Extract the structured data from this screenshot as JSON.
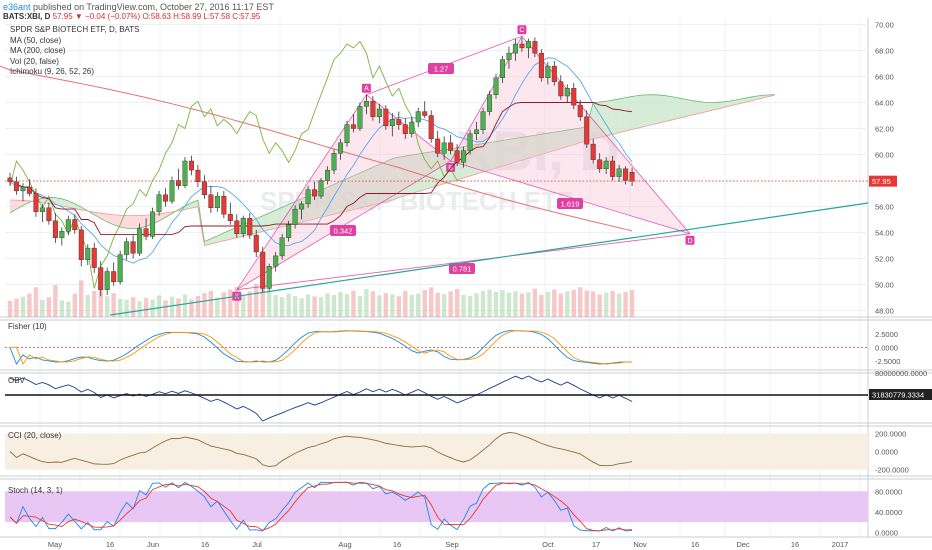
{
  "header": {
    "publisher": "e36ant",
    "published_text": "published on TradingView.com, October 27, 2016 11:17 EST",
    "symbol_line": "BATS:XBI, D",
    "last": "57.95",
    "change": "−0.04 (−0.07%)",
    "ohlc": "O:58.63 H:58.99 L:57.58 C:57.95"
  },
  "legend": {
    "title": "SPDR S&P BIOTECH ETF, D, BATS",
    "items": [
      "MA (50, close)",
      "MA (200, close)",
      "Vol (20, false)",
      "Ichimoku (9, 26, 52, 26)"
    ]
  },
  "watermark": {
    "symbol": "XBI, D",
    "name": "SPDR S&P BIOTECH ETF"
  },
  "colors": {
    "bull": "#4caf50",
    "bear": "#e53935",
    "harmonic": "#e040a0",
    "trendline": "#26a69a",
    "ma50": "#5aa9e6",
    "ma200": "#e57373",
    "lagging": "#7cb342",
    "cloud_green": "#c8e6c9",
    "cloud_red": "#ffcdd2",
    "stoch_band": "#e9c7f5",
    "cci_band": "#f6efe2"
  },
  "chart_data": [
    {
      "type": "candlestick",
      "title": "SPDR S&P BIOTECH ETF, D, BATS",
      "y_ticks": [
        "70.00",
        "68.00",
        "66.00",
        "64.00",
        "62.00",
        "60.00",
        "58.00",
        "56.00",
        "54.00",
        "52.00",
        "50.00",
        "48.00"
      ],
      "ylim": [
        47.5,
        70.5
      ],
      "last_price_label": "57.95",
      "candles": [
        [
          58.2,
          58.6,
          57.6,
          57.9
        ],
        [
          57.9,
          58.3,
          56.9,
          57.2
        ],
        [
          57.2,
          57.8,
          56.4,
          57.5
        ],
        [
          57.5,
          58.1,
          56.8,
          57.0
        ],
        [
          57.0,
          57.4,
          55.2,
          55.6
        ],
        [
          55.6,
          56.2,
          54.8,
          55.9
        ],
        [
          55.9,
          56.3,
          54.6,
          54.9
        ],
        [
          54.9,
          55.5,
          53.2,
          53.6
        ],
        [
          53.6,
          54.4,
          53.0,
          54.1
        ],
        [
          54.1,
          55.3,
          53.8,
          55.0
        ],
        [
          55.0,
          55.4,
          53.9,
          54.2
        ],
        [
          54.2,
          54.5,
          51.4,
          51.9
        ],
        [
          51.9,
          53.1,
          51.5,
          52.8
        ],
        [
          52.8,
          53.2,
          50.9,
          51.3
        ],
        [
          51.3,
          51.8,
          49.1,
          49.6
        ],
        [
          49.6,
          51.3,
          49.2,
          51.0
        ],
        [
          51.0,
          51.7,
          49.9,
          50.2
        ],
        [
          50.2,
          52.6,
          50.0,
          52.3
        ],
        [
          52.3,
          53.6,
          51.9,
          53.3
        ],
        [
          53.3,
          53.8,
          52.0,
          52.4
        ],
        [
          52.4,
          54.7,
          52.2,
          54.3
        ],
        [
          54.3,
          55.1,
          53.4,
          53.7
        ],
        [
          53.7,
          55.9,
          53.5,
          55.6
        ],
        [
          55.6,
          57.2,
          55.3,
          56.9
        ],
        [
          56.9,
          57.4,
          56.0,
          56.4
        ],
        [
          56.4,
          58.3,
          56.2,
          58.0
        ],
        [
          58.0,
          58.9,
          57.3,
          57.6
        ],
        [
          57.6,
          59.8,
          57.4,
          59.5
        ],
        [
          59.5,
          59.9,
          58.4,
          58.8
        ],
        [
          58.8,
          59.2,
          57.5,
          57.9
        ],
        [
          57.9,
          58.4,
          56.6,
          56.9
        ],
        [
          56.9,
          57.6,
          55.5,
          55.9
        ],
        [
          55.9,
          57.1,
          55.6,
          56.8
        ],
        [
          56.8,
          57.2,
          55.1,
          55.4
        ],
        [
          55.4,
          56.3,
          54.6,
          54.9
        ],
        [
          54.9,
          55.4,
          53.6,
          53.9
        ],
        [
          53.9,
          55.3,
          53.6,
          55.1
        ],
        [
          55.1,
          55.5,
          53.5,
          53.8
        ],
        [
          53.8,
          54.2,
          52.1,
          52.5
        ],
        [
          52.5,
          52.9,
          49.4,
          49.7
        ],
        [
          49.7,
          51.6,
          49.5,
          51.4
        ],
        [
          51.4,
          52.5,
          51.0,
          52.2
        ],
        [
          52.2,
          53.9,
          51.9,
          53.6
        ],
        [
          53.6,
          54.9,
          53.3,
          54.6
        ],
        [
          54.6,
          56.1,
          54.3,
          55.8
        ],
        [
          55.8,
          56.4,
          55.0,
          56.2
        ],
        [
          56.2,
          57.6,
          55.9,
          57.3
        ],
        [
          57.3,
          57.9,
          56.5,
          56.8
        ],
        [
          56.8,
          58.2,
          56.6,
          58.0
        ],
        [
          58.0,
          59.1,
          57.7,
          58.8
        ],
        [
          58.8,
          60.4,
          58.5,
          60.1
        ],
        [
          60.1,
          61.2,
          59.6,
          60.9
        ],
        [
          60.9,
          62.6,
          60.6,
          62.3
        ],
        [
          62.3,
          63.1,
          61.7,
          62.0
        ],
        [
          62.0,
          64.0,
          61.8,
          63.7
        ],
        [
          63.7,
          64.6,
          63.1,
          64.1
        ],
        [
          64.1,
          64.5,
          62.6,
          62.9
        ],
        [
          62.9,
          63.9,
          62.4,
          63.5
        ],
        [
          63.5,
          63.8,
          61.9,
          62.2
        ],
        [
          62.2,
          63.2,
          61.4,
          62.7
        ],
        [
          62.7,
          63.3,
          61.9,
          62.3
        ],
        [
          62.3,
          62.8,
          61.2,
          61.6
        ],
        [
          61.6,
          62.9,
          61.3,
          62.5
        ],
        [
          62.5,
          63.6,
          62.1,
          63.3
        ],
        [
          63.3,
          64.1,
          62.8,
          63.0
        ],
        [
          63.0,
          63.4,
          60.9,
          61.2
        ],
        [
          61.2,
          61.8,
          59.8,
          60.1
        ],
        [
          60.1,
          61.4,
          59.6,
          60.9
        ],
        [
          60.9,
          61.5,
          60.0,
          60.3
        ],
        [
          60.3,
          60.8,
          59.1,
          59.4
        ],
        [
          59.4,
          60.6,
          59.0,
          60.3
        ],
        [
          60.3,
          61.9,
          60.0,
          61.6
        ],
        [
          61.6,
          62.5,
          61.1,
          61.9
        ],
        [
          61.9,
          63.6,
          61.6,
          63.3
        ],
        [
          63.3,
          64.9,
          63.0,
          64.6
        ],
        [
          64.6,
          66.2,
          64.3,
          65.9
        ],
        [
          65.9,
          67.6,
          65.5,
          67.3
        ],
        [
          67.3,
          68.3,
          66.6,
          67.8
        ],
        [
          67.8,
          68.9,
          67.2,
          68.5
        ],
        [
          68.5,
          69.0,
          67.9,
          68.2
        ],
        [
          68.2,
          68.9,
          67.4,
          68.7
        ],
        [
          68.7,
          69.0,
          67.5,
          67.8
        ],
        [
          67.8,
          68.1,
          65.6,
          65.9
        ],
        [
          65.9,
          67.1,
          65.4,
          66.8
        ],
        [
          66.8,
          67.2,
          65.3,
          65.6
        ],
        [
          65.6,
          66.1,
          64.2,
          64.5
        ],
        [
          64.5,
          65.4,
          64.0,
          65.1
        ],
        [
          65.1,
          65.5,
          63.5,
          63.8
        ],
        [
          63.8,
          64.2,
          62.6,
          62.9
        ],
        [
          62.9,
          63.4,
          60.5,
          60.8
        ],
        [
          60.8,
          61.2,
          59.3,
          59.6
        ],
        [
          59.6,
          60.1,
          58.6,
          58.9
        ],
        [
          58.9,
          59.8,
          58.5,
          59.5
        ],
        [
          59.5,
          59.9,
          58.0,
          58.3
        ],
        [
          58.3,
          59.2,
          57.9,
          58.9
        ],
        [
          58.9,
          59.1,
          57.7,
          58.0
        ],
        [
          58.63,
          58.99,
          57.58,
          57.95
        ]
      ],
      "volume": [
        36,
        41,
        45,
        52,
        66,
        38,
        44,
        71,
        37,
        34,
        52,
        81,
        49,
        58,
        92,
        46,
        53,
        40,
        38,
        44,
        35,
        42,
        39,
        48,
        37,
        45,
        41,
        50,
        39,
        47,
        53,
        58,
        43,
        55,
        61,
        67,
        48,
        57,
        74,
        139,
        56,
        49,
        44,
        52,
        47,
        42,
        50,
        46,
        44,
        53,
        49,
        55,
        51,
        58,
        47,
        62,
        57,
        48,
        53,
        50,
        46,
        58,
        49,
        52,
        60,
        66,
        54,
        51,
        57,
        62,
        49,
        47,
        53,
        58,
        61,
        56,
        60,
        54,
        57,
        52,
        55,
        63,
        49,
        56,
        61,
        52,
        57,
        60,
        66,
        59,
        57,
        50,
        54,
        58,
        52,
        56,
        60
      ]
    },
    {
      "type": "line",
      "title": "Fisher (10)",
      "y_ticks": [
        "2.5000",
        "0.0000",
        "-2.5000"
      ],
      "ylim": [
        -4.0,
        4.5
      ]
    },
    {
      "type": "line",
      "title": "OBV",
      "y_ticks": [
        "80000000.0000"
      ],
      "last_value_label": "31830779.3334"
    },
    {
      "type": "line",
      "title": "CCI (20, close)",
      "y_ticks": [
        "200.0000",
        "0.0000",
        "-200.0000"
      ],
      "ylim": [
        -260,
        260
      ]
    },
    {
      "type": "line",
      "title": "Stoch (14, 3, 1)",
      "y_ticks": [
        "80.0000",
        "40.0000",
        "0.0000"
      ],
      "ylim": [
        -5,
        100
      ]
    }
  ],
  "harmonic": {
    "points": [
      "X",
      "A",
      "B",
      "C",
      "D"
    ],
    "ratios": [
      "1.27",
      "0.342",
      "1.619",
      "0.781"
    ]
  },
  "x_axis": {
    "labels": [
      "May",
      "16",
      "Jun",
      "16",
      "Jul",
      "Aug",
      "16",
      "Sep",
      "Oct",
      "17",
      "Nov",
      "16",
      "Dec",
      "16",
      "2017"
    ]
  }
}
